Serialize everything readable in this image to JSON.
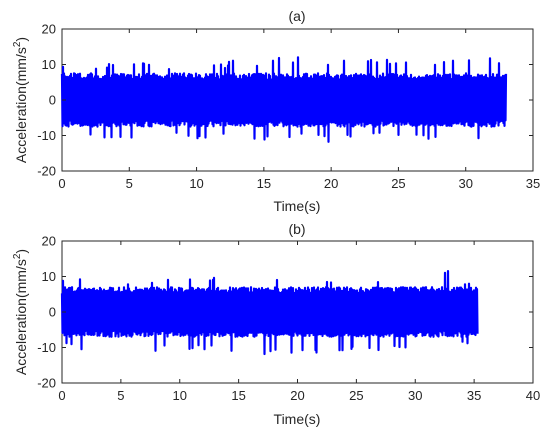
{
  "chart_data": [
    {
      "type": "line",
      "title": "(a)",
      "xlabel": "Time(s)",
      "ylabel": "Acceleration(mm/s",
      "ylabel_superscript": "2",
      "ylabel_suffix": ")",
      "xlim": [
        0,
        35
      ],
      "ylim": [
        -20,
        20
      ],
      "xticks": [
        0,
        5,
        10,
        15,
        20,
        25,
        30,
        35
      ],
      "yticks": [
        -20,
        -10,
        0,
        10,
        20
      ],
      "grid": false,
      "series": [
        {
          "color": "#0000ff",
          "duration_s": 33.0,
          "upper_envelope": [
            [
              0,
              9.5
            ],
            [
              2,
              10.5
            ],
            [
              4,
              10.0
            ],
            [
              6,
              11.5
            ],
            [
              8,
              10.0
            ],
            [
              10,
              10.5
            ],
            [
              12,
              10.0
            ],
            [
              13,
              12.0
            ],
            [
              15,
              11.0
            ],
            [
              17,
              12.5
            ],
            [
              20,
              11.0
            ],
            [
              22,
              12.5
            ],
            [
              25,
              11.0
            ],
            [
              27,
              11.5
            ],
            [
              29,
              11.0
            ],
            [
              31,
              13.5
            ],
            [
              33,
              11.0
            ]
          ],
          "lower_envelope": [
            [
              0,
              -8.5
            ],
            [
              2,
              -10.0
            ],
            [
              4,
              -11.5
            ],
            [
              6,
              -11.0
            ],
            [
              8,
              -10.5
            ],
            [
              10,
              -11.0
            ],
            [
              12,
              -10.5
            ],
            [
              15,
              -11.5
            ],
            [
              16,
              -12.5
            ],
            [
              18,
              -10.5
            ],
            [
              20,
              -12.0
            ],
            [
              22,
              -10.5
            ],
            [
              25,
              -11.0
            ],
            [
              28,
              -11.5
            ],
            [
              31,
              -11.0
            ],
            [
              33,
              -8.0
            ]
          ],
          "typical_amplitude": 7.5
        }
      ]
    },
    {
      "type": "line",
      "title": "(b)",
      "xlabel": "Time(s)",
      "ylabel": "Acceleration(mm/s",
      "ylabel_superscript": "2",
      "ylabel_suffix": ")",
      "xlim": [
        0,
        40
      ],
      "ylim": [
        -20,
        20
      ],
      "xticks": [
        0,
        5,
        10,
        15,
        20,
        25,
        30,
        35,
        40
      ],
      "yticks": [
        -20,
        -10,
        0,
        10,
        20
      ],
      "grid": false,
      "series": [
        {
          "color": "#0000ff",
          "duration_s": 35.3,
          "upper_envelope": [
            [
              0,
              9.0
            ],
            [
              3,
              9.5
            ],
            [
              6,
              9.0
            ],
            [
              9,
              9.5
            ],
            [
              12,
              9.5
            ],
            [
              15,
              10.0
            ],
            [
              18,
              9.5
            ],
            [
              21,
              9.5
            ],
            [
              25,
              9.0
            ],
            [
              28,
              9.5
            ],
            [
              31,
              9.0
            ],
            [
              32.5,
              12.5
            ],
            [
              34,
              9.0
            ],
            [
              35.3,
              9.0
            ]
          ],
          "lower_envelope": [
            [
              0,
              -9.0
            ],
            [
              2,
              -11.5
            ],
            [
              5,
              -10.5
            ],
            [
              8,
              -11.0
            ],
            [
              11,
              -10.5
            ],
            [
              14,
              -11.5
            ],
            [
              17,
              -12.0
            ],
            [
              20,
              -12.0
            ],
            [
              23,
              -11.0
            ],
            [
              26,
              -11.0
            ],
            [
              29,
              -10.5
            ],
            [
              32,
              -10.5
            ],
            [
              35.3,
              -9.0
            ]
          ],
          "typical_amplitude": 7.0
        }
      ]
    }
  ]
}
